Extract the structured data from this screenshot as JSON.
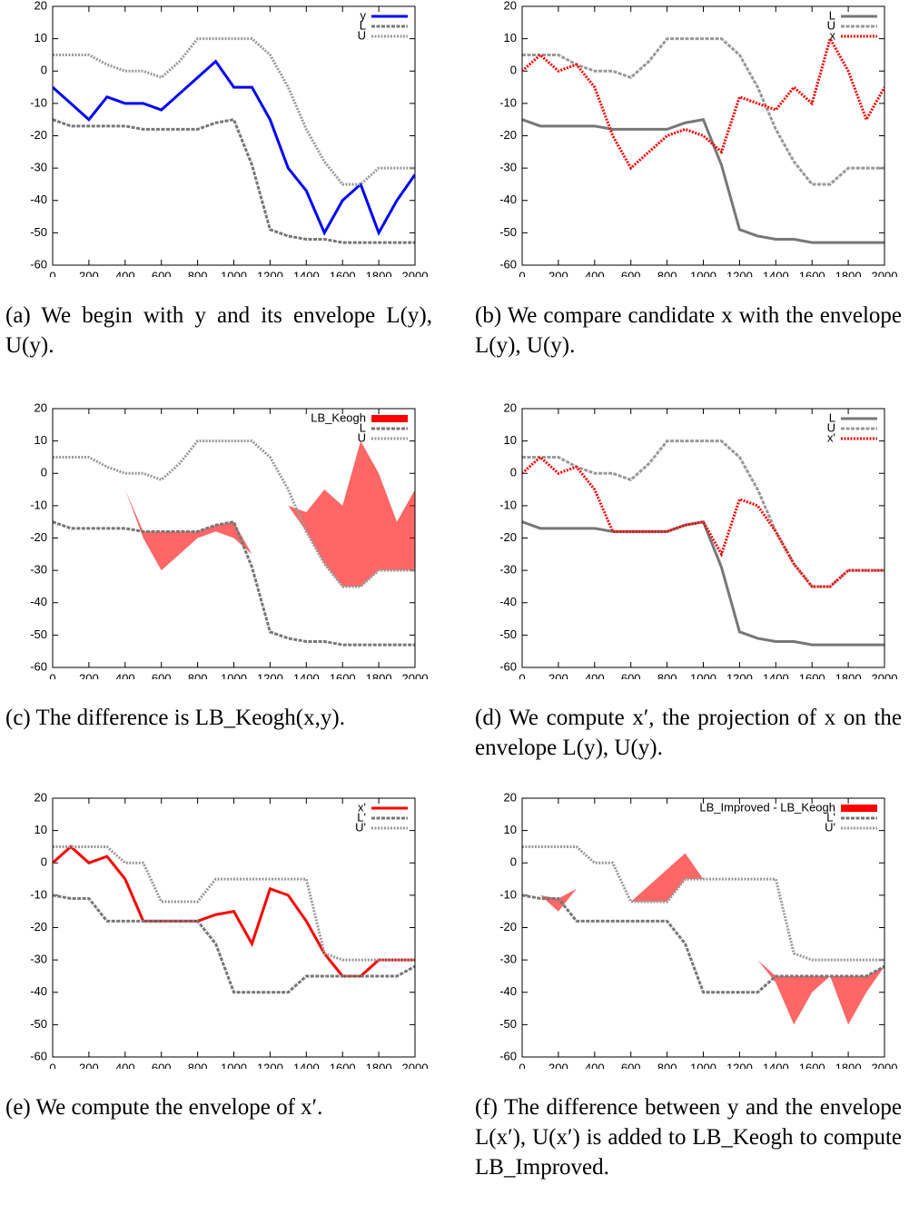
{
  "chart_data": [
    {
      "type": "line",
      "caption": "(a) We begin with y and its envelope L(y), U(y).",
      "x": [
        0,
        100,
        200,
        300,
        400,
        500,
        600,
        700,
        800,
        900,
        1000,
        1100,
        1200,
        1300,
        1400,
        1500,
        1600,
        1700,
        1800,
        1900,
        2000
      ],
      "xlim": [
        0,
        2000
      ],
      "ylim": [
        -60,
        20
      ],
      "xticks": [
        0,
        200,
        400,
        600,
        800,
        1000,
        1200,
        1400,
        1600,
        1800,
        2000
      ],
      "yticks": [
        -60,
        -50,
        -40,
        -30,
        -20,
        -10,
        0,
        10,
        20
      ],
      "legend": "upper right",
      "series": [
        {
          "name": "y",
          "color": "#0000ff",
          "dash": "solid",
          "values": [
            -5,
            -10,
            -15,
            -8,
            -10,
            -10,
            -12,
            -7,
            -2,
            3,
            -5,
            -5,
            -15,
            -30,
            -37,
            -50,
            -40,
            -35,
            -50,
            -40,
            -32
          ]
        },
        {
          "name": "L",
          "color": "#777777",
          "dash": "dashed",
          "values": [
            -15,
            -17,
            -17,
            -17,
            -17,
            -18,
            -18,
            -18,
            -18,
            -16,
            -15,
            -29,
            -49,
            -51,
            -52,
            -52,
            -53,
            -53,
            -53,
            -53,
            -53
          ]
        },
        {
          "name": "U",
          "color": "#999999",
          "dash": "dotted",
          "values": [
            5,
            5,
            5,
            2,
            0,
            0,
            -2,
            3,
            10,
            10,
            10,
            10,
            5,
            -5,
            -18,
            -28,
            -35,
            -35,
            -30,
            -30,
            -30
          ]
        }
      ]
    },
    {
      "type": "line",
      "caption": "(b) We compare candidate x with the envelope L(y), U(y).",
      "x": [
        0,
        100,
        200,
        300,
        400,
        500,
        600,
        700,
        800,
        900,
        1000,
        1100,
        1200,
        1300,
        1400,
        1500,
        1600,
        1700,
        1800,
        1900,
        2000
      ],
      "xlim": [
        0,
        2000
      ],
      "ylim": [
        -60,
        20
      ],
      "xticks": [
        0,
        200,
        400,
        600,
        800,
        1000,
        1200,
        1400,
        1600,
        1800,
        2000
      ],
      "yticks": [
        -60,
        -50,
        -40,
        -30,
        -20,
        -10,
        0,
        10,
        20
      ],
      "legend": "upper right",
      "series": [
        {
          "name": "L",
          "color": "#777777",
          "dash": "solid",
          "values": [
            -15,
            -17,
            -17,
            -17,
            -17,
            -18,
            -18,
            -18,
            -18,
            -16,
            -15,
            -29,
            -49,
            -51,
            -52,
            -52,
            -53,
            -53,
            -53,
            -53,
            -53
          ]
        },
        {
          "name": "U",
          "color": "#999999",
          "dash": "dashed",
          "values": [
            5,
            5,
            5,
            2,
            0,
            0,
            -2,
            3,
            10,
            10,
            10,
            10,
            5,
            -5,
            -18,
            -28,
            -35,
            -35,
            -30,
            -30,
            -30
          ]
        },
        {
          "name": "x",
          "color": "#ff0000",
          "dash": "dotted",
          "values": [
            0,
            5,
            0,
            2,
            -5,
            -20,
            -30,
            -25,
            -20,
            -18,
            -20,
            -25,
            -8,
            -10,
            -12,
            -5,
            -10,
            10,
            0,
            -15,
            -5
          ]
        }
      ]
    },
    {
      "type": "line",
      "caption": "(c) The difference is LB_Keogh(x,y).",
      "x": [
        0,
        100,
        200,
        300,
        400,
        500,
        600,
        700,
        800,
        900,
        1000,
        1100,
        1200,
        1300,
        1400,
        1500,
        1600,
        1700,
        1800,
        1900,
        2000
      ],
      "xlim": [
        0,
        2000
      ],
      "ylim": [
        -60,
        20
      ],
      "xticks": [
        0,
        200,
        400,
        600,
        800,
        1000,
        1200,
        1400,
        1600,
        1800,
        2000
      ],
      "yticks": [
        -60,
        -50,
        -40,
        -30,
        -20,
        -10,
        0,
        10,
        20
      ],
      "legend": "upper right",
      "series": [
        {
          "name": "LB_Keogh",
          "color": "#ff0000",
          "fill": true,
          "values": [
            0,
            5,
            0,
            2,
            -5,
            -20,
            -30,
            -25,
            -20,
            -18,
            -20,
            -25,
            -8,
            -10,
            -12,
            -5,
            -10,
            10,
            0,
            -15,
            -5
          ],
          "bounds": [
            0,
            5,
            0,
            2,
            -5,
            -18,
            -18,
            -18,
            -18,
            -16,
            -15,
            -25,
            -8,
            -10,
            -18,
            -28,
            -35,
            -35,
            -30,
            -30,
            -30
          ]
        },
        {
          "name": "L",
          "color": "#777777",
          "dash": "dashed",
          "values": [
            -15,
            -17,
            -17,
            -17,
            -17,
            -18,
            -18,
            -18,
            -18,
            -16,
            -15,
            -29,
            -49,
            -51,
            -52,
            -52,
            -53,
            -53,
            -53,
            -53,
            -53
          ]
        },
        {
          "name": "U",
          "color": "#999999",
          "dash": "dotted",
          "values": [
            5,
            5,
            5,
            2,
            0,
            0,
            -2,
            3,
            10,
            10,
            10,
            10,
            5,
            -5,
            -18,
            -28,
            -35,
            -35,
            -30,
            -30,
            -30
          ]
        }
      ]
    },
    {
      "type": "line",
      "caption": "(d) We compute x′, the projection of x on the envelope L(y), U(y).",
      "x": [
        0,
        100,
        200,
        300,
        400,
        500,
        600,
        700,
        800,
        900,
        1000,
        1100,
        1200,
        1300,
        1400,
        1500,
        1600,
        1700,
        1800,
        1900,
        2000
      ],
      "xlim": [
        0,
        2000
      ],
      "ylim": [
        -60,
        20
      ],
      "xticks": [
        0,
        200,
        400,
        600,
        800,
        1000,
        1200,
        1400,
        1600,
        1800,
        2000
      ],
      "yticks": [
        -60,
        -50,
        -40,
        -30,
        -20,
        -10,
        0,
        10,
        20
      ],
      "legend": "upper right",
      "series": [
        {
          "name": "L",
          "color": "#777777",
          "dash": "solid",
          "values": [
            -15,
            -17,
            -17,
            -17,
            -17,
            -18,
            -18,
            -18,
            -18,
            -16,
            -15,
            -29,
            -49,
            -51,
            -52,
            -52,
            -53,
            -53,
            -53,
            -53,
            -53
          ]
        },
        {
          "name": "U",
          "color": "#999999",
          "dash": "dashed",
          "values": [
            5,
            5,
            5,
            2,
            0,
            0,
            -2,
            3,
            10,
            10,
            10,
            10,
            5,
            -5,
            -18,
            -28,
            -35,
            -35,
            -30,
            -30,
            -30
          ]
        },
        {
          "name": "x'",
          "color": "#ff0000",
          "dash": "dotted",
          "values": [
            0,
            5,
            0,
            2,
            -5,
            -18,
            -18,
            -18,
            -18,
            -16,
            -15,
            -25,
            -8,
            -10,
            -18,
            -28,
            -35,
            -35,
            -30,
            -30,
            -30
          ]
        }
      ]
    },
    {
      "type": "line",
      "caption": "(e) We compute the envelope of x′.",
      "x": [
        0,
        100,
        200,
        300,
        400,
        500,
        600,
        700,
        800,
        900,
        1000,
        1100,
        1200,
        1300,
        1400,
        1500,
        1600,
        1700,
        1800,
        1900,
        2000
      ],
      "xlim": [
        0,
        2000
      ],
      "ylim": [
        -60,
        20
      ],
      "xticks": [
        0,
        200,
        400,
        600,
        800,
        1000,
        1200,
        1400,
        1600,
        1800,
        2000
      ],
      "yticks": [
        -60,
        -50,
        -40,
        -30,
        -20,
        -10,
        0,
        10,
        20
      ],
      "legend": "upper right",
      "series": [
        {
          "name": "x'",
          "color": "#ff0000",
          "dash": "solid",
          "values": [
            0,
            5,
            0,
            2,
            -5,
            -18,
            -18,
            -18,
            -18,
            -16,
            -15,
            -25,
            -8,
            -10,
            -18,
            -28,
            -35,
            -35,
            -30,
            -30,
            -30
          ]
        },
        {
          "name": "L'",
          "color": "#777777",
          "dash": "dashed",
          "values": [
            -10,
            -11,
            -11,
            -18,
            -18,
            -18,
            -18,
            -18,
            -18,
            -25,
            -40,
            -40,
            -40,
            -40,
            -35,
            -35,
            -35,
            -35,
            -35,
            -35,
            -32
          ]
        },
        {
          "name": "U'",
          "color": "#999999",
          "dash": "dotted",
          "values": [
            5,
            5,
            5,
            5,
            0,
            0,
            -12,
            -12,
            -12,
            -5,
            -5,
            -5,
            -5,
            -5,
            -5,
            -28,
            -30,
            -30,
            -30,
            -30,
            -30
          ]
        }
      ]
    },
    {
      "type": "line",
      "caption": "(f) The difference between y and the envelope L(x′), U(x′) is added to LB_Keogh to compute LB_Improved.",
      "x": [
        0,
        100,
        200,
        300,
        400,
        500,
        600,
        700,
        800,
        900,
        1000,
        1100,
        1200,
        1300,
        1400,
        1500,
        1600,
        1700,
        1800,
        1900,
        2000
      ],
      "xlim": [
        0,
        2000
      ],
      "ylim": [
        -60,
        20
      ],
      "xticks": [
        0,
        200,
        400,
        600,
        800,
        1000,
        1200,
        1400,
        1600,
        1800,
        2000
      ],
      "yticks": [
        -60,
        -50,
        -40,
        -30,
        -20,
        -10,
        0,
        10,
        20
      ],
      "legend": "upper right",
      "series": [
        {
          "name": "LB_Improved - LB_Keogh",
          "color": "#ff0000",
          "fill": true,
          "values": [
            -5,
            -10,
            -15,
            -8,
            -10,
            -10,
            -12,
            -7,
            -2,
            3,
            -5,
            -5,
            -15,
            -30,
            -37,
            -50,
            -40,
            -35,
            -50,
            -40,
            -32
          ],
          "bounds": [
            -5,
            -10,
            -11,
            -8,
            -10,
            -10,
            -12,
            -12,
            -12,
            -5,
            -5,
            -5,
            -15,
            -30,
            -35,
            -35,
            -35,
            -35,
            -35,
            -35,
            -32
          ]
        },
        {
          "name": "L'",
          "color": "#777777",
          "dash": "dashed",
          "values": [
            -10,
            -11,
            -11,
            -18,
            -18,
            -18,
            -18,
            -18,
            -18,
            -25,
            -40,
            -40,
            -40,
            -40,
            -35,
            -35,
            -35,
            -35,
            -35,
            -35,
            -32
          ]
        },
        {
          "name": "U'",
          "color": "#999999",
          "dash": "dotted",
          "values": [
            5,
            5,
            5,
            5,
            0,
            0,
            -12,
            -12,
            -12,
            -5,
            -5,
            -5,
            -5,
            -5,
            -5,
            -28,
            -30,
            -30,
            -30,
            -30,
            -30
          ]
        }
      ]
    }
  ]
}
